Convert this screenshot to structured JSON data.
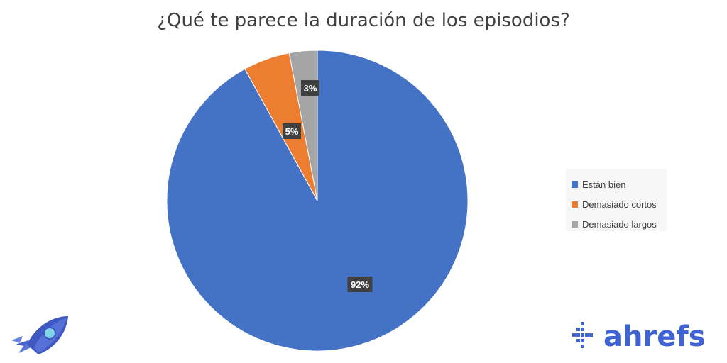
{
  "chart_data": {
    "type": "pie",
    "title": "¿Qué te parece la duración de los episodios?",
    "slices": [
      {
        "label": "Están bien",
        "value": 92,
        "data_label": "92%",
        "color": "#4472c4"
      },
      {
        "label": "Demasiado cortos",
        "value": 5,
        "data_label": "5%",
        "color": "#ed7d31"
      },
      {
        "label": "Demasiado largos",
        "value": 3,
        "data_label": "3%",
        "color": "#a5a5a5"
      }
    ],
    "legend_position": "right"
  },
  "branding": {
    "wordmark": "ahrefs",
    "logo_icon": "rocket-icon",
    "brand_color": "#3f63d3"
  }
}
